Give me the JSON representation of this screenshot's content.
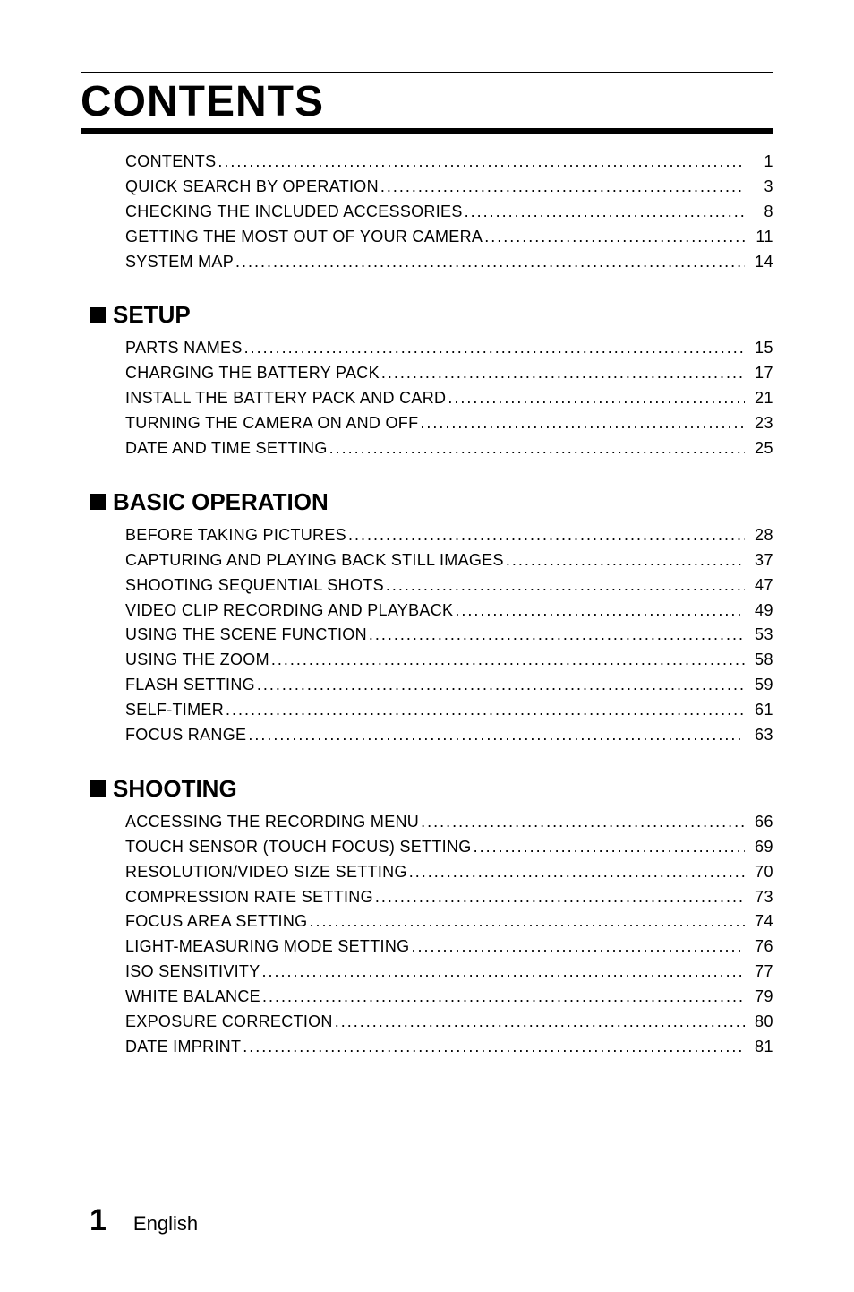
{
  "title": "CONTENTS",
  "front": [
    {
      "label": "CONTENTS",
      "page": "1"
    },
    {
      "label": "QUICK SEARCH BY OPERATION",
      "page": "3"
    },
    {
      "label": "CHECKING THE INCLUDED ACCESSORIES",
      "page": "8"
    },
    {
      "label": "GETTING THE MOST OUT OF YOUR CAMERA",
      "page": "11"
    },
    {
      "label": "SYSTEM MAP",
      "page": "14"
    }
  ],
  "sections": [
    {
      "heading": "SETUP",
      "items": [
        {
          "label": "PARTS NAMES",
          "page": "15"
        },
        {
          "label": "CHARGING THE BATTERY PACK",
          "page": "17"
        },
        {
          "label": "INSTALL THE BATTERY PACK AND CARD",
          "page": "21"
        },
        {
          "label": "TURNING THE CAMERA ON AND OFF",
          "page": "23"
        },
        {
          "label": "DATE AND TIME SETTING",
          "page": "25"
        }
      ]
    },
    {
      "heading": "BASIC OPERATION",
      "items": [
        {
          "label": "BEFORE TAKING PICTURES",
          "page": "28"
        },
        {
          "label": "CAPTURING AND PLAYING BACK STILL IMAGES",
          "page": "37"
        },
        {
          "label": "SHOOTING SEQUENTIAL SHOTS",
          "page": "47"
        },
        {
          "label": "VIDEO CLIP RECORDING AND PLAYBACK",
          "page": "49"
        },
        {
          "label": "USING THE SCENE FUNCTION",
          "page": "53"
        },
        {
          "label": "USING THE ZOOM",
          "page": "58"
        },
        {
          "label": "FLASH SETTING",
          "page": "59"
        },
        {
          "label": "SELF-TIMER",
          "page": "61"
        },
        {
          "label": "FOCUS RANGE",
          "page": "63"
        }
      ]
    },
    {
      "heading": "SHOOTING",
      "items": [
        {
          "label": "ACCESSING THE RECORDING MENU",
          "page": "66"
        },
        {
          "label": "TOUCH SENSOR (TOUCH FOCUS) SETTING",
          "page": "69"
        },
        {
          "label": "RESOLUTION/VIDEO SIZE SETTING",
          "page": "70"
        },
        {
          "label": "COMPRESSION RATE SETTING",
          "page": "73"
        },
        {
          "label": "FOCUS AREA SETTING",
          "page": "74"
        },
        {
          "label": "LIGHT-MEASURING MODE SETTING",
          "page": "76"
        },
        {
          "label": "ISO SENSITIVITY",
          "page": "77"
        },
        {
          "label": "WHITE BALANCE",
          "page": "79"
        },
        {
          "label": "EXPOSURE CORRECTION",
          "page": "80"
        },
        {
          "label": "DATE IMPRINT",
          "page": "81"
        }
      ]
    }
  ],
  "footer": {
    "pageNumber": "1",
    "language": "English"
  },
  "style": {
    "bg": "#ffffff",
    "text": "#000000",
    "title_fontsize": 48,
    "section_fontsize": 26,
    "row_fontsize": 18,
    "footer_page_fontsize": 34,
    "footer_lang_fontsize": 22
  }
}
